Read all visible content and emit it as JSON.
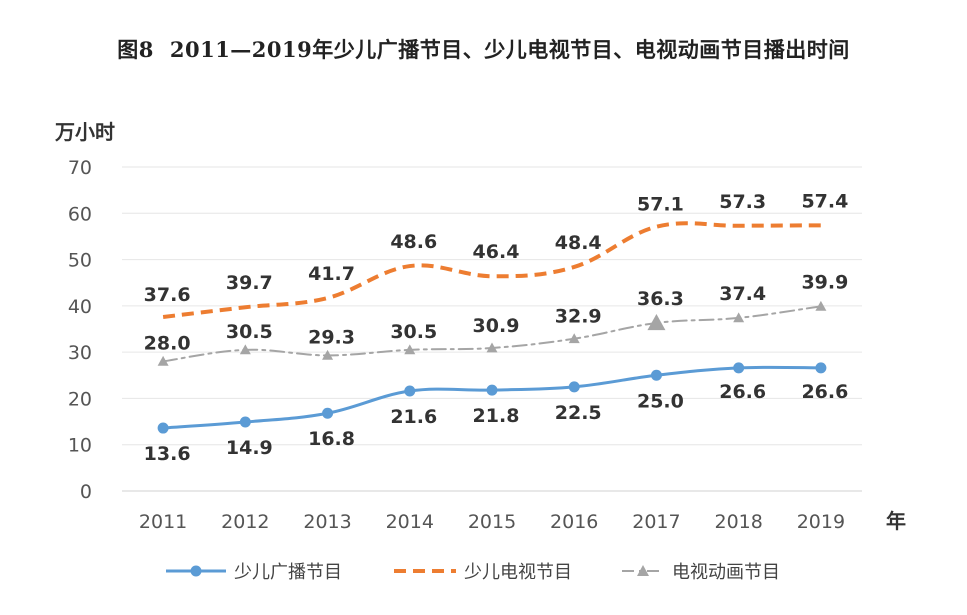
{
  "title": {
    "fig_no": "图8",
    "text": "2011—2019年少儿广播节目、少儿电视节目、电视动画节目播出时间"
  },
  "chart_data": {
    "type": "line",
    "title": "2011—2019年少儿广播节目、少儿电视节目、电视动画节目播出时间",
    "ylabel": "万小时",
    "xlabel": "年",
    "ylim": [
      0,
      70
    ],
    "yticks": [
      0,
      10,
      20,
      30,
      40,
      50,
      60,
      70
    ],
    "grid": true,
    "legend": "bottom",
    "categories": [
      "2011",
      "2012",
      "2013",
      "2014",
      "2015",
      "2016",
      "2017",
      "2018",
      "2019"
    ],
    "series": [
      {
        "name": "少儿广播节目",
        "values": [
          13.6,
          14.9,
          16.8,
          21.6,
          21.8,
          22.5,
          25.0,
          26.6,
          26.6
        ],
        "labels": [
          "13.6",
          "14.9",
          "16.8",
          "21.6",
          "21.8",
          "22.5",
          "25.0",
          "26.6",
          "26.6"
        ],
        "color": "#5b9bd5",
        "style": "solid-circle"
      },
      {
        "name": "少儿电视节目",
        "values": [
          37.6,
          39.7,
          41.7,
          48.6,
          46.4,
          48.4,
          57.1,
          57.3,
          57.4
        ],
        "labels": [
          "37.6",
          "39.7",
          "41.7",
          "48.6",
          "46.4",
          "48.4",
          "57.1",
          "57.3",
          "57.4"
        ],
        "color": "#ed7d31",
        "style": "dashed"
      },
      {
        "name": "电视动画节目",
        "values": [
          28.0,
          30.5,
          29.3,
          30.5,
          30.9,
          32.9,
          36.3,
          37.4,
          39.9
        ],
        "labels": [
          "28.0",
          "30.5",
          "29.3",
          "30.5",
          "30.9",
          "32.9",
          "36.3",
          "37.4",
          "39.9"
        ],
        "color": "#a5a5a5",
        "style": "dashdot-triangle"
      }
    ]
  }
}
